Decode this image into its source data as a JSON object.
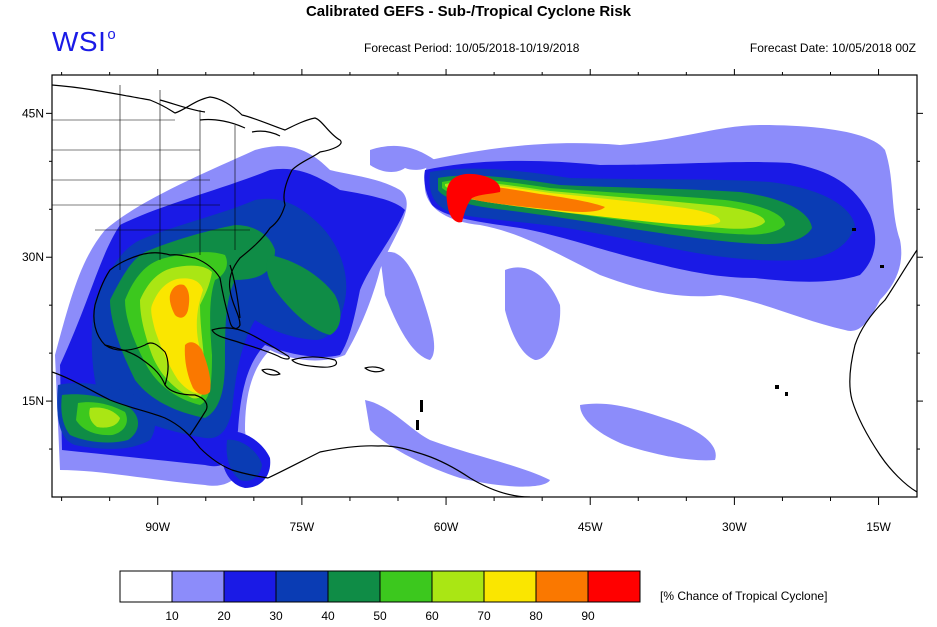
{
  "title": "Calibrated GEFS - Sub-/Tropical Cyclone Risk",
  "logo": {
    "text": "WSI",
    "mark": "o"
  },
  "forecast_period": "Forecast Period: 10/05/2018-10/19/2018",
  "forecast_date": "Forecast Date: 10/05/2018 00Z",
  "map": {
    "lon_range": [
      -101,
      -11
    ],
    "lat_range": [
      5,
      49
    ],
    "lat_labels": [
      "45N",
      "30N",
      "15N"
    ],
    "lon_labels": [
      "90W",
      "75W",
      "60W",
      "45W",
      "30W",
      "15W"
    ]
  },
  "legend": {
    "label": "[% Chance of Tropical Cyclone]",
    "tick_labels": [
      "10",
      "20",
      "30",
      "40",
      "50",
      "60",
      "70",
      "80",
      "90"
    ],
    "colors": [
      "#ffffff",
      "#8c8cfa",
      "#1a1ae6",
      "#0a3cb4",
      "#0f8c46",
      "#3cc81e",
      "#aae614",
      "#fae600",
      "#fa7800",
      "#ff0000"
    ]
  }
}
